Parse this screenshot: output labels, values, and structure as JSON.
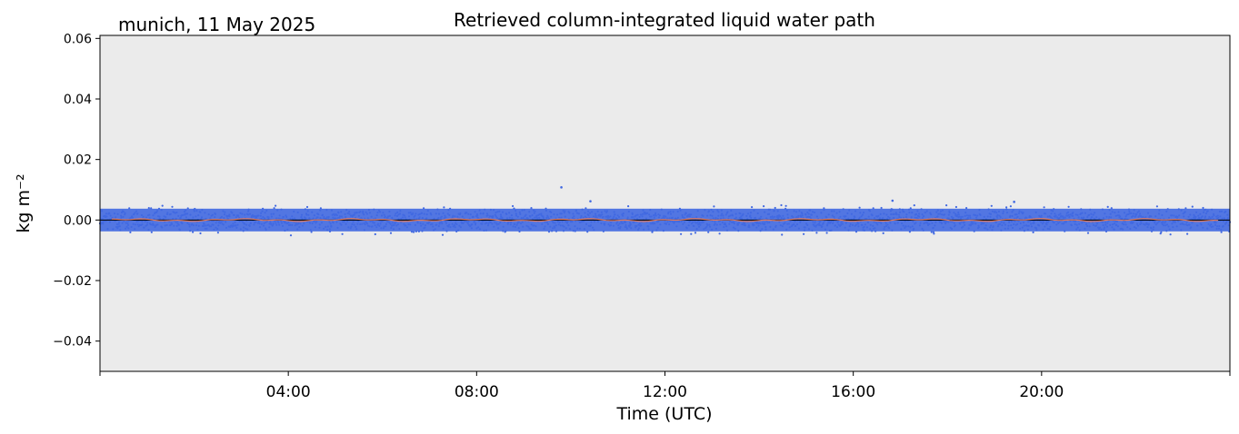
{
  "titles": {
    "location": "munich, 11 May 2025",
    "main": "Retrieved column-integrated liquid water path"
  },
  "colors": {
    "background": "#ebebeb",
    "points": "#4169e1",
    "mean_line": "#e07a5f",
    "zero_line": "#000000"
  },
  "chart_data": {
    "type": "scatter",
    "title": "Retrieved column-integrated liquid water path",
    "xlabel": "Time (UTC)",
    "ylabel": "kg m⁻²",
    "xlim": [
      "00:00",
      "24:00"
    ],
    "ylim": [
      -0.05,
      0.061
    ],
    "xticks": [
      "04:00",
      "08:00",
      "12:00",
      "16:00",
      "20:00"
    ],
    "yticks": [
      "0.06",
      "0.04",
      "0.02",
      "0.00",
      "−0.02",
      "−0.04"
    ],
    "ytick_values": [
      0.06,
      0.04,
      0.02,
      0.0,
      -0.02,
      -0.04
    ],
    "series": [
      {
        "kind": "points",
        "time_range": [
          "00:00",
          "24:00"
        ],
        "typical_range": [
          -0.005,
          0.005
        ],
        "center": 0.0
      },
      {
        "kind": "line",
        "values_near": 0.0
      }
    ],
    "outliers": [
      {
        "time": "09:48",
        "value": 0.0108
      },
      {
        "time": "10:25",
        "value": 0.0062
      },
      {
        "time": "16:50",
        "value": 0.0064
      },
      {
        "time": "19:25",
        "value": 0.006
      }
    ],
    "grid": false
  }
}
